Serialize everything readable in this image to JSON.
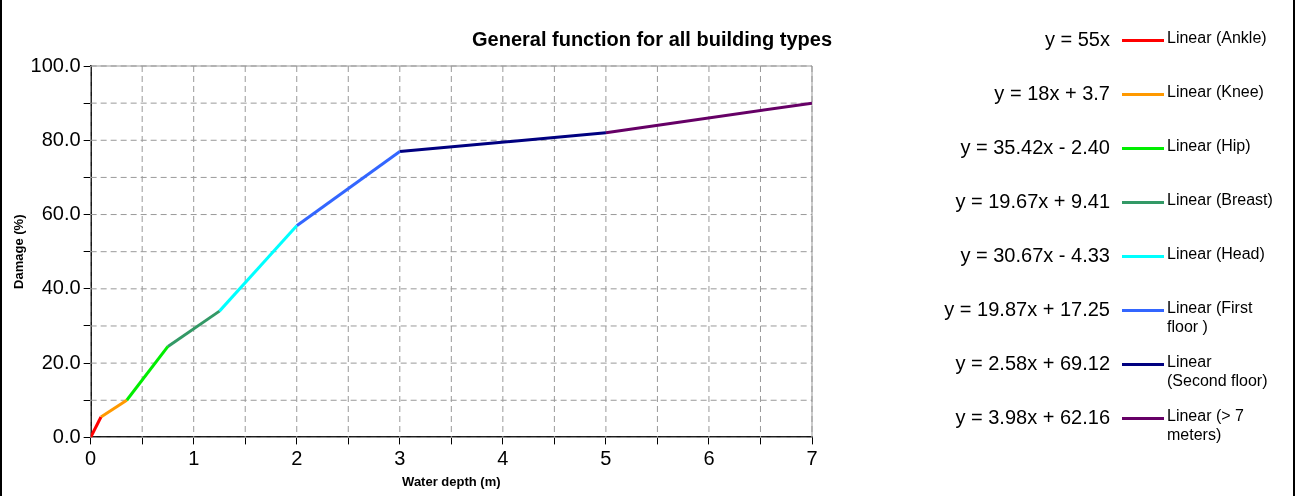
{
  "chart_data": {
    "type": "line",
    "title": "General function for all building types",
    "xlabel": "Water depth (m)",
    "ylabel": "Damage (%)",
    "xlim": [
      0,
      7
    ],
    "ylim": [
      0,
      100
    ],
    "xticks": [
      0,
      {
        "value": 0.5,
        "label": null
      },
      1,
      {
        "value": 1.5,
        "label": null
      },
      2,
      {
        "value": 2.5,
        "label": null
      },
      3,
      {
        "value": 3.5,
        "label": null
      },
      4,
      {
        "value": 4.5,
        "label": null
      },
      5,
      {
        "value": 5.5,
        "label": null
      },
      6,
      {
        "value": 6.5,
        "label": null
      },
      7
    ],
    "yticks": [
      {
        "value": 0,
        "label": "0.0"
      },
      {
        "value": 10,
        "label": null
      },
      {
        "value": 20,
        "label": "20.0"
      },
      {
        "value": 30,
        "label": null
      },
      {
        "value": 40,
        "label": "40.0"
      },
      {
        "value": 50,
        "label": null
      },
      {
        "value": 60,
        "label": "60.0"
      },
      {
        "value": 70,
        "label": null
      },
      {
        "value": 80,
        "label": "80.0"
      },
      {
        "value": 90,
        "label": null
      },
      {
        "value": 100,
        "label": "100.0"
      }
    ],
    "grid": true,
    "legend": "right",
    "marker": "none",
    "line_style": "solid",
    "series": [
      {
        "name": "Linear (Ankle)",
        "color": "#ff0000",
        "x": [
          0,
          0.1
        ],
        "values": [
          0,
          5.5
        ]
      },
      {
        "name": "Linear (Knee)",
        "color": "#ff9900",
        "x": [
          0.1,
          0.35
        ],
        "values": [
          5.5,
          10
        ]
      },
      {
        "name": "Linear (Hip)",
        "color": "#00ee00",
        "x": [
          0.35,
          0.75
        ],
        "values": [
          10,
          24.5
        ]
      },
      {
        "name": "Linear (Breast)",
        "color": "#339966",
        "x": [
          0.75,
          1.25
        ],
        "values": [
          24.5,
          34
        ]
      },
      {
        "name": "Linear (Head)",
        "color": "#00ffff",
        "x": [
          1.25,
          2
        ],
        "values": [
          34,
          57
        ]
      },
      {
        "name": "Linear (First floor )",
        "color": "#3366ff",
        "x": [
          2,
          3
        ],
        "values": [
          57,
          77
        ]
      },
      {
        "name": "Linear (Second floor)",
        "color": "#000080",
        "x": [
          3,
          5
        ],
        "values": [
          77,
          82
        ]
      },
      {
        "name": "Linear (> 7 meters)",
        "color": "#660066",
        "x": [
          5,
          7
        ],
        "values": [
          82,
          90
        ]
      }
    ],
    "annotations": [
      "y = 55x",
      "y = 18x + 3.7",
      "y = 35.42x - 2.40",
      "y = 19.67x + 9.41",
      "y = 30.67x - 4.33",
      "y = 19.87x + 17.25",
      "y = 2.58x + 69.12",
      "y = 3.98x + 62.16"
    ]
  }
}
